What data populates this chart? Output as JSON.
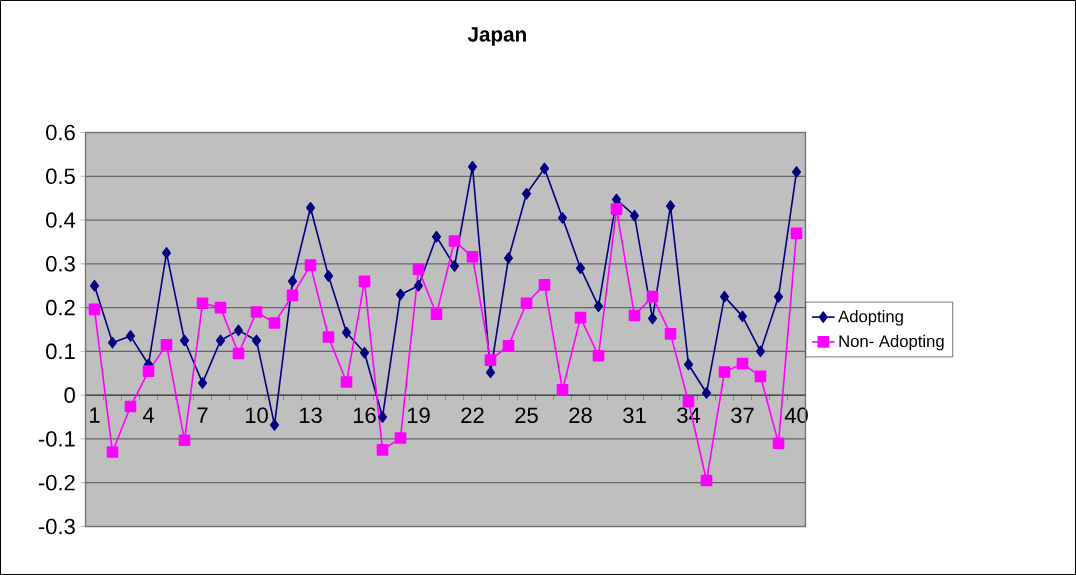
{
  "chart_data": {
    "type": "line",
    "title": "Japan",
    "categories": [
      "1",
      null,
      null,
      "4",
      null,
      null,
      "7",
      null,
      null,
      "10",
      null,
      null,
      "13",
      null,
      null,
      "16",
      null,
      null,
      "19",
      null,
      null,
      "22",
      null,
      null,
      "25",
      null,
      null,
      "28",
      null,
      null,
      "31",
      null,
      null,
      "34",
      null,
      null,
      "37",
      null,
      null,
      "40"
    ],
    "series": [
      {
        "name": "Adopting",
        "color": "#000080",
        "marker": "diamond",
        "values": [
          0.25,
          0.12,
          0.135,
          0.07,
          0.325,
          0.125,
          0.028,
          0.125,
          0.148,
          0.125,
          -0.068,
          0.26,
          0.428,
          0.272,
          0.143,
          0.097,
          -0.05,
          0.23,
          0.25,
          0.362,
          0.295,
          0.522,
          0.052,
          0.313,
          0.46,
          0.518,
          0.405,
          0.29,
          0.203,
          0.447,
          0.41,
          0.175,
          0.432,
          0.07,
          0.005,
          0.225,
          0.18,
          0.1,
          0.225,
          0.51
        ]
      },
      {
        "name": "Non- Adopting",
        "color": "#ff00ff",
        "marker": "square",
        "values": [
          0.196,
          -0.13,
          -0.026,
          0.055,
          0.115,
          -0.103,
          0.21,
          0.2,
          0.095,
          0.19,
          0.165,
          0.228,
          0.297,
          0.133,
          0.03,
          0.26,
          -0.125,
          -0.098,
          0.288,
          0.185,
          0.352,
          0.316,
          0.08,
          0.113,
          0.21,
          0.252,
          0.012,
          0.177,
          0.09,
          0.425,
          0.182,
          0.225,
          0.14,
          -0.015,
          -0.195,
          0.053,
          0.072,
          0.043,
          -0.11,
          0.37
        ]
      }
    ],
    "ylim": [
      -0.3,
      0.6
    ],
    "yticks": [
      -0.3,
      -0.2,
      -0.1,
      0,
      0.1,
      0.2,
      0.3,
      0.4,
      0.5,
      0.6
    ],
    "grid": "y",
    "legend": "right",
    "line_style": "solid"
  }
}
